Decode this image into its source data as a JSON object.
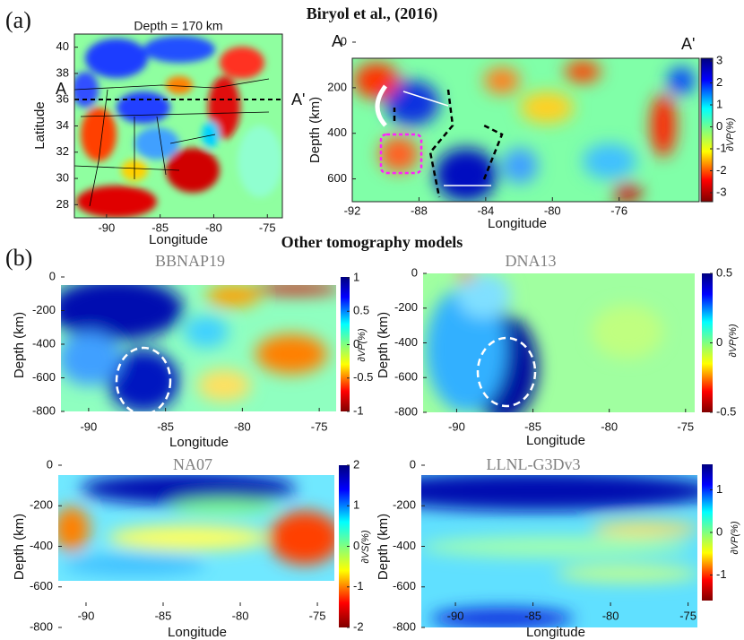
{
  "header": {
    "title": "Biryol et al., (2016)",
    "subtitle": "Other tomography models",
    "panel_a": "(a)",
    "panel_b": "(b)"
  },
  "chart_data": [
    {
      "type": "heatmap",
      "title": "Depth = 170 km",
      "xlabel": "Longitude",
      "ylabel": "Latitude",
      "xlim": [
        -93,
        -73.6
      ],
      "ylim": [
        27,
        41
      ],
      "xticks": [
        -90,
        -85,
        -80,
        -75
      ],
      "yticks": [
        28,
        30,
        32,
        34,
        36,
        38,
        40
      ],
      "annotations": [
        "A",
        "A'"
      ]
    },
    {
      "type": "heatmap",
      "xlabel": "Longitude",
      "ylabel": "Depth (km)",
      "xlim": [
        -92,
        -71.2
      ],
      "ylim": [
        700,
        0
      ],
      "xticks": [
        -92,
        -88,
        -84,
        -80,
        -76
      ],
      "yticks": [
        0,
        200,
        400,
        600
      ],
      "colorbar_label": "∂VP(%)",
      "clim": [
        -3,
        3
      ],
      "cticks": [
        -3,
        -2,
        -1,
        0,
        1,
        2,
        3
      ],
      "annotations": [
        "A",
        "A'"
      ]
    },
    {
      "type": "heatmap",
      "title": "BBNAP19",
      "xlabel": "Longitude",
      "ylabel": "Depth (km)",
      "xlim": [
        -91.8,
        -73.9
      ],
      "ylim": [
        -800,
        0
      ],
      "xticks": [
        -90,
        -85,
        -80,
        -75
      ],
      "yticks": [
        0,
        -200,
        -400,
        -600,
        -800
      ],
      "colorbar_label": "∂VP(%)",
      "clim": [
        -1,
        1
      ],
      "cticks": [
        -1,
        -0.5,
        0,
        0.5,
        1
      ]
    },
    {
      "type": "heatmap",
      "title": "DNA13",
      "xlabel": "Longitude",
      "ylabel": "Depth (km)",
      "xlim": [
        -92.2,
        -74.4
      ],
      "ylim": [
        -800,
        0
      ],
      "xticks": [
        -90,
        -85,
        -80,
        -75
      ],
      "yticks": [
        0,
        -200,
        -400,
        -600,
        -800
      ],
      "colorbar_label": "∂VP(%)",
      "clim": [
        -0.5,
        0.5
      ],
      "cticks": [
        -0.5,
        0,
        0.5
      ]
    },
    {
      "type": "heatmap",
      "title": "NA07",
      "xlabel": "Longitude",
      "ylabel": "Depth (km)",
      "xlim": [
        -91.8,
        -73.9
      ],
      "ylim": [
        -800,
        0
      ],
      "xticks": [
        -90,
        -85,
        -80,
        -75
      ],
      "yticks": [
        0,
        -200,
        -400,
        -600,
        -800
      ],
      "colorbar_label": "∂VS(%)",
      "clim": [
        -2,
        2
      ],
      "cticks": [
        -2,
        -1,
        0,
        1,
        2
      ]
    },
    {
      "type": "heatmap",
      "title": "LLNL-G3Dv3",
      "xlabel": "Longitude",
      "ylabel": "Depth (km)",
      "xlim": [
        -92.2,
        -74.4
      ],
      "ylim": [
        -800,
        0
      ],
      "xticks": [
        -90,
        -85,
        -80,
        -75
      ],
      "yticks": [
        0,
        -200,
        -400,
        -600,
        -800
      ],
      "colorbar_label": "∂VP(%)",
      "clim": [
        -1.6,
        1.6
      ],
      "cticks": [
        -1,
        0,
        1
      ]
    }
  ]
}
